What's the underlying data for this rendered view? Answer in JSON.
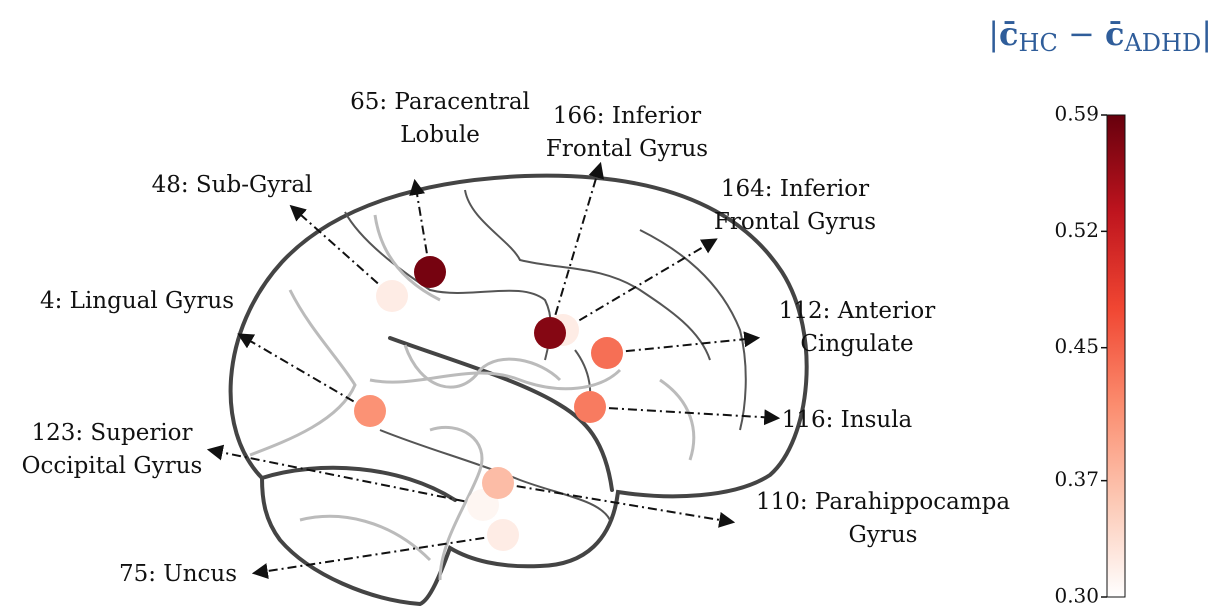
{
  "title": [
    "|",
    "c̄",
    "HC",
    " − ",
    "c̄",
    "ADHD",
    "|"
  ],
  "nodes": [
    {
      "label": [
        "65: Paracentral",
        "Lobule"
      ],
      "value": 0.58
    },
    {
      "label": [
        "166: Inferior",
        "Frontal Gyrus"
      ],
      "value": 0.57
    },
    {
      "label": [
        "164: Inferior",
        "Frontal Gyrus"
      ],
      "value": 0.32
    },
    {
      "label": [
        "48: Sub-Gyral"
      ],
      "value": 0.32
    },
    {
      "label": [
        "4: Lingual Gyrus"
      ],
      "value": 0.41
    },
    {
      "label": [
        "112: Anterior",
        "Cingulate"
      ],
      "value": 0.44
    },
    {
      "label": [
        "116: Insula"
      ],
      "value": 0.43
    },
    {
      "label": [
        "123: Superior",
        "Occipital Gyrus"
      ],
      "value": 0.31
    },
    {
      "label": [
        "110: Parahippocampa",
        "Gyrus"
      ],
      "value": 0.37
    },
    {
      "label": [
        "75: Uncus"
      ],
      "value": 0.32
    }
  ],
  "colorbar": {
    "range": [
      0.3,
      0.59
    ],
    "ticks": [
      0.59,
      0.52,
      0.45,
      0.37,
      {
        "value": 0.3,
        "label": "0.30"
      }
    ]
  }
}
